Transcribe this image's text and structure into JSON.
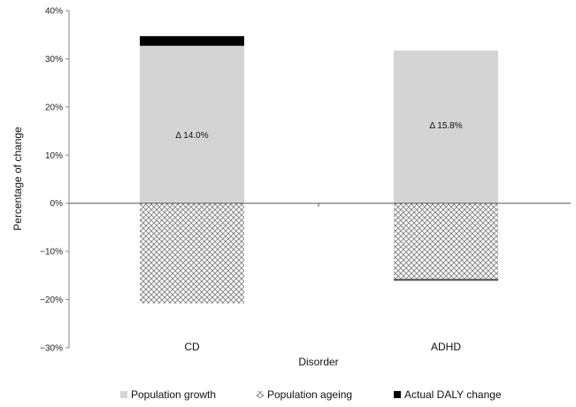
{
  "chart_data": {
    "type": "bar",
    "stacked": true,
    "categories": [
      "CD",
      "ADHD"
    ],
    "series": [
      {
        "name": "Population growth",
        "values": [
          32.7,
          31.7
        ],
        "color": "#d4d4d4",
        "pattern": "solid"
      },
      {
        "name": "Population ageing",
        "values": [
          -20.8,
          -15.7
        ],
        "color": "#9a9a9a",
        "pattern": "crosshatch"
      },
      {
        "name": "Actual DALY change",
        "values": [
          2.0,
          -0.4
        ],
        "color": "#000000",
        "pattern": "solid"
      }
    ],
    "annotations": [
      "Δ 14.0%",
      "Δ 15.8%"
    ],
    "xlabel": "Disorder",
    "ylabel": "Percentage of change",
    "ylim": [
      -30,
      40
    ],
    "ytick_values": [
      -30,
      -20,
      -10,
      0,
      10,
      20,
      30,
      40
    ],
    "ytick_labels": [
      "−30%",
      "−20%",
      "−10%",
      "0%",
      "10%",
      "20%",
      "30%",
      "40%"
    ],
    "legend_position": "bottom",
    "grid": false
  }
}
